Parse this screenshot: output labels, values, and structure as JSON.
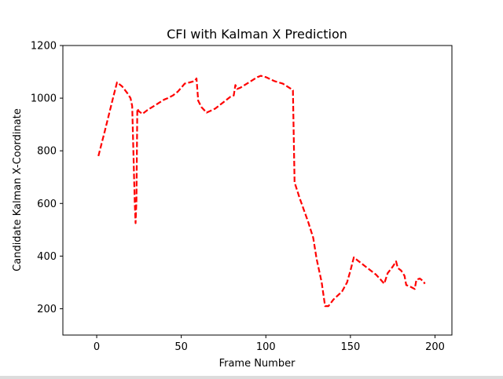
{
  "chart_data": {
    "type": "line",
    "title": "CFI with Kalman X Prediction",
    "xlabel": "Frame Number",
    "ylabel": "Candidate Kalman X-Coordinate",
    "xlim": [
      -20,
      210
    ],
    "ylim": [
      100,
      1200
    ],
    "xticks": [
      0,
      50,
      100,
      150,
      200
    ],
    "yticks": [
      200,
      400,
      600,
      800,
      1000,
      1200
    ],
    "grid": false,
    "series": [
      {
        "color": "#ff0000",
        "line_style": "dashed",
        "x": [
          1,
          5,
          10,
          12,
          15,
          18,
          20,
          21,
          22,
          22.5,
          23,
          23.5,
          24,
          25,
          27,
          30,
          35,
          40,
          42,
          45,
          48,
          50,
          52,
          55,
          58,
          59,
          60,
          62,
          65,
          70,
          75,
          79,
          81,
          82,
          83,
          85,
          90,
          95,
          97,
          100,
          105,
          110,
          115,
          116,
          117,
          120,
          125,
          128,
          130,
          133,
          135,
          137,
          140,
          145,
          148,
          150,
          152,
          155,
          160,
          165,
          168,
          170,
          172,
          175,
          177,
          178,
          180,
          182,
          183,
          185,
          188,
          189,
          191,
          193,
          194
        ],
        "y": [
          780,
          880,
          1010,
          1060,
          1045,
          1020,
          1000,
          970,
          720,
          600,
          525,
          610,
          960,
          950,
          940,
          955,
          975,
          995,
          1000,
          1010,
          1025,
          1040,
          1055,
          1060,
          1065,
          1075,
          990,
          965,
          945,
          960,
          985,
          1005,
          1010,
          1050,
          1035,
          1040,
          1060,
          1080,
          1085,
          1080,
          1065,
          1055,
          1035,
          1030,
          680,
          620,
          530,
          470,
          390,
          300,
          210,
          210,
          235,
          265,
          300,
          345,
          395,
          380,
          355,
          330,
          310,
          295,
          335,
          360,
          380,
          355,
          345,
          325,
          290,
          285,
          275,
          310,
          315,
          305,
          295
        ]
      }
    ]
  }
}
